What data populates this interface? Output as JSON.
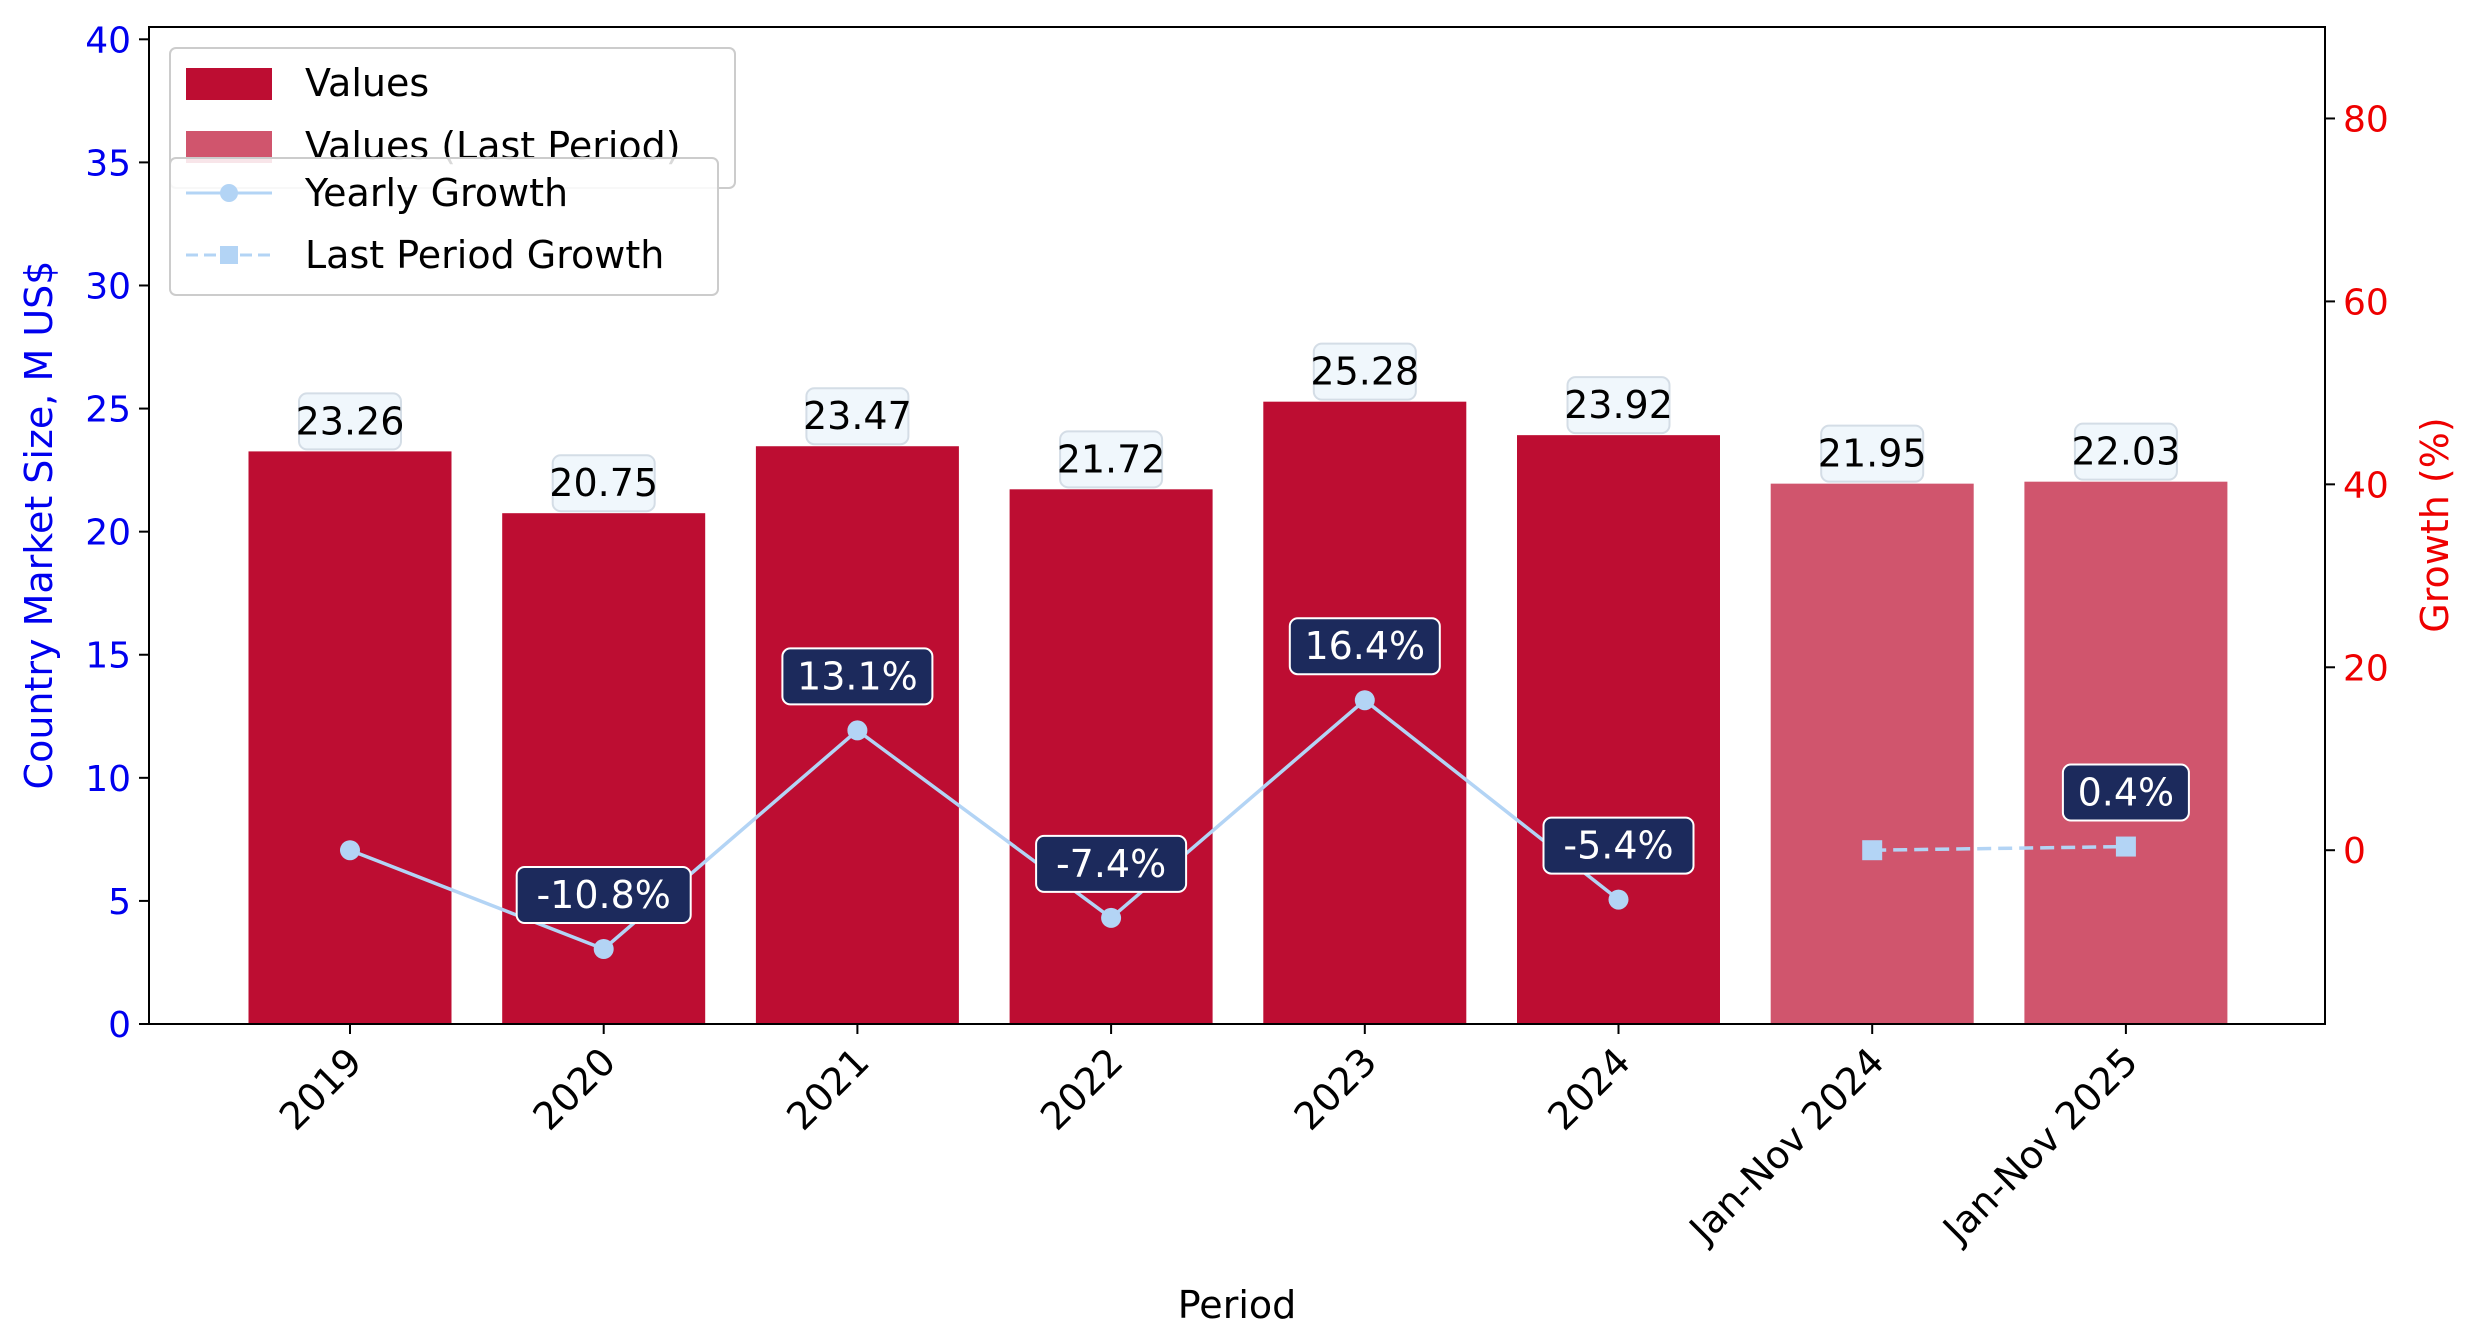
{
  "chart_data": {
    "type": "bar",
    "categories": [
      "2019",
      "2020",
      "2021",
      "2022",
      "2023",
      "2024",
      "Jan-Nov 2024",
      "Jan-Nov 2025"
    ],
    "series": [
      {
        "name": "Values",
        "values": [
          23.26,
          20.75,
          23.47,
          21.72,
          25.28,
          23.92,
          null,
          null
        ],
        "color": "#bd0d32"
      },
      {
        "name": "Values (Last Period)",
        "values": [
          null,
          null,
          null,
          null,
          null,
          null,
          21.95,
          22.03
        ],
        "color": "#d0556d"
      }
    ],
    "growth_series": [
      {
        "name": "Yearly Growth",
        "type": "line",
        "style": "solid-circle",
        "values": [
          0.0,
          -10.8,
          13.1,
          -7.4,
          16.4,
          -5.4,
          null,
          null
        ],
        "labels": [
          null,
          "-10.8%",
          "13.1%",
          "-7.4%",
          "16.4%",
          "-5.4%",
          null,
          null
        ],
        "color": "#b3d4f5"
      },
      {
        "name": "Last Period Growth",
        "type": "line",
        "style": "dashed-square",
        "values": [
          null,
          null,
          null,
          null,
          null,
          null,
          0.0,
          0.4
        ],
        "labels": [
          null,
          null,
          null,
          null,
          null,
          null,
          null,
          "0.4%"
        ],
        "color": "#b3d4f5"
      }
    ],
    "value_labels": [
      "23.26",
      "20.75",
      "23.47",
      "21.72",
      "25.28",
      "23.92",
      "21.95",
      "22.03"
    ],
    "title": "",
    "xlabel": "Period",
    "ylabel": "Country Market Size, M US$",
    "y2label": "Growth (%)",
    "ylim": [
      0,
      40.5
    ],
    "y2lim": [
      -19,
      90
    ],
    "yticks": [
      0,
      5,
      10,
      15,
      20,
      25,
      30,
      35,
      40
    ],
    "y2ticks": [
      0,
      20,
      40,
      60,
      80
    ],
    "grid": false,
    "legend_placement": "top-left",
    "colors": {
      "left_axis": "#0000ee",
      "right_axis": "#ee0000",
      "value_label_bg": "#f0f7fc",
      "growth_label_bg": "#1c2a5c"
    }
  }
}
